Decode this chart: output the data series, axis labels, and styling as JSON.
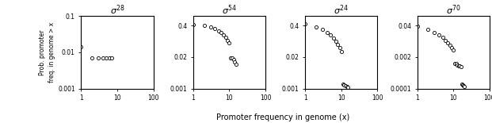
{
  "panels": [
    {
      "title": "28",
      "xlim": [
        1,
        100
      ],
      "ylim": [
        0.001,
        0.1
      ],
      "yticks": [
        0.001,
        0.01,
        0.1
      ],
      "ytick_labels": [
        "0.001",
        "0.01",
        "0.1"
      ],
      "xticks": [
        1,
        10,
        100
      ],
      "xtick_labels": [
        "1",
        "10",
        "100"
      ],
      "x": [
        1,
        2,
        3,
        4,
        5,
        6,
        7
      ],
      "y": [
        0.014,
        0.007,
        0.007,
        0.007,
        0.007,
        0.007,
        0.007
      ]
    },
    {
      "title": "54",
      "xlim": [
        1,
        100
      ],
      "ylim": [
        0.001,
        1.0
      ],
      "yticks": [
        0.001,
        0.02,
        0.4
      ],
      "ytick_labels": [
        "0.001",
        "0.02",
        "0.4"
      ],
      "xticks": [
        1,
        10,
        100
      ],
      "xtick_labels": [
        "1",
        "10",
        "100"
      ],
      "x": [
        1,
        2,
        3,
        4,
        5,
        6,
        7,
        8,
        9,
        10,
        11,
        12,
        13,
        14,
        15
      ],
      "y": [
        0.45,
        0.42,
        0.36,
        0.3,
        0.25,
        0.21,
        0.17,
        0.13,
        0.1,
        0.08,
        0.018,
        0.018,
        0.016,
        0.013,
        0.01
      ]
    },
    {
      "title": "24",
      "xlim": [
        1,
        100
      ],
      "ylim": [
        0.001,
        1.0
      ],
      "yticks": [
        0.001,
        0.02,
        0.4
      ],
      "ytick_labels": [
        "0.001",
        "0.02",
        "0.4"
      ],
      "xticks": [
        1,
        10,
        100
      ],
      "xtick_labels": [
        "1",
        "10",
        "100"
      ],
      "x": [
        1,
        2,
        3,
        4,
        5,
        6,
        7,
        8,
        9,
        10,
        11,
        12,
        13,
        14,
        15
      ],
      "y": [
        0.48,
        0.36,
        0.27,
        0.21,
        0.16,
        0.12,
        0.09,
        0.065,
        0.048,
        0.034,
        0.0015,
        0.0014,
        0.0013,
        0.0012,
        0.0011
      ]
    },
    {
      "title": "70",
      "xlim": [
        1,
        100
      ],
      "ylim": [
        0.0001,
        0.1
      ],
      "yticks": [
        0.0001,
        0.002,
        0.04
      ],
      "ytick_labels": [
        "0.0001",
        "0.002",
        "0.04"
      ],
      "xticks": [
        1,
        10,
        100
      ],
      "xtick_labels": [
        "1",
        "10",
        "100"
      ],
      "x": [
        1,
        2,
        3,
        4,
        5,
        6,
        7,
        8,
        9,
        10,
        11,
        12,
        13,
        14,
        15,
        16,
        17,
        18,
        19,
        20
      ],
      "y": [
        0.038,
        0.028,
        0.021,
        0.016,
        0.013,
        0.01,
        0.008,
        0.006,
        0.005,
        0.004,
        0.0011,
        0.0011,
        0.00095,
        0.0009,
        0.00085,
        0.0008,
        0.00015,
        0.00014,
        0.00013,
        0.00012
      ]
    }
  ],
  "xlabel": "Promoter frequency in genome (x)",
  "ylabel": "Prob. promoter\nfreq. in genome > x",
  "marker": "o",
  "markerfacecolor": "white",
  "markeredgecolor": "black",
  "markersize": 3.0,
  "markeredgewidth": 0.6
}
